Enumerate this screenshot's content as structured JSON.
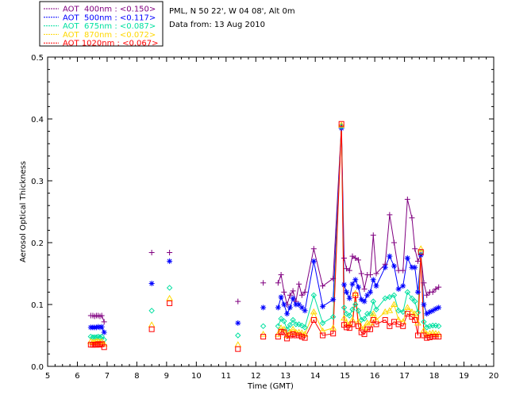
{
  "chart_data": {
    "type": "line",
    "site_info": [
      "PML, N 50 22', W 04 08', Alt 0m",
      "Data from: 13 Aug 2010"
    ],
    "xlabel": "Time (GMT)",
    "ylabel": "Aerosol Optical Thickness",
    "xlim": [
      5,
      20
    ],
    "ylim": [
      0,
      0.5
    ],
    "x_ticks": [
      5,
      6,
      7,
      8,
      9,
      10,
      11,
      12,
      13,
      14,
      15,
      16,
      17,
      18,
      19,
      20
    ],
    "x_tick_labels": [
      "5",
      "6",
      "7",
      "8",
      "9",
      "10",
      "11",
      "12",
      "13",
      "14",
      "15",
      "16",
      "17",
      "18",
      "19",
      "20"
    ],
    "y_ticks": [
      0.0,
      0.1,
      0.2,
      0.3,
      0.4,
      0.5
    ],
    "y_tick_labels": [
      "0.0",
      "0.1",
      "0.2",
      "0.3",
      "0.4",
      "0.5"
    ],
    "grid": false,
    "legend_position": "top-left",
    "x": [
      6.45,
      6.52,
      6.58,
      6.64,
      6.7,
      6.76,
      6.82,
      6.9,
      8.5,
      9.1,
      11.4,
      12.25,
      12.75,
      12.85,
      12.95,
      13.05,
      13.15,
      13.25,
      13.35,
      13.45,
      13.55,
      13.65,
      13.95,
      14.25,
      14.6,
      14.88,
      14.97,
      15.05,
      15.15,
      15.25,
      15.35,
      15.45,
      15.55,
      15.65,
      15.75,
      15.85,
      15.95,
      16.05,
      16.35,
      16.5,
      16.65,
      16.8,
      16.95,
      17.1,
      17.25,
      17.35,
      17.45,
      17.55,
      17.65,
      17.75,
      17.85,
      17.95,
      18.05,
      18.15
    ],
    "series": [
      {
        "name": "AOT  400nm : <0.150>",
        "color": "#800080",
        "marker": "plus",
        "values": [
          0.082,
          0.082,
          0.081,
          0.082,
          0.082,
          0.081,
          0.082,
          0.072,
          0.184,
          0.184,
          0.105,
          0.135,
          0.135,
          0.148,
          0.12,
          0.1,
          0.115,
          0.122,
          0.105,
          0.133,
          0.115,
          0.12,
          0.19,
          0.13,
          0.142,
          0.39,
          0.175,
          0.158,
          0.155,
          0.178,
          0.175,
          0.172,
          0.15,
          0.125,
          0.148,
          0.148,
          0.212,
          0.15,
          0.165,
          0.245,
          0.2,
          0.155,
          0.155,
          0.27,
          0.24,
          0.19,
          0.17,
          0.18,
          0.135,
          0.115,
          0.12,
          0.12,
          0.125,
          0.128
        ]
      },
      {
        "name": "AOT  500nm : <0.117>",
        "color": "#0000ff",
        "marker": "star",
        "values": [
          0.063,
          0.063,
          0.063,
          0.063,
          0.064,
          0.063,
          0.064,
          0.055,
          0.134,
          0.17,
          0.07,
          0.095,
          0.095,
          0.112,
          0.1,
          0.085,
          0.095,
          0.11,
          0.1,
          0.1,
          0.095,
          0.09,
          0.17,
          0.097,
          0.108,
          0.385,
          0.132,
          0.12,
          0.11,
          0.133,
          0.14,
          0.128,
          0.108,
          0.105,
          0.115,
          0.12,
          0.14,
          0.13,
          0.16,
          0.178,
          0.162,
          0.125,
          0.13,
          0.175,
          0.16,
          0.16,
          0.12,
          0.18,
          0.1,
          0.085,
          0.088,
          0.09,
          0.093,
          0.095
        ]
      },
      {
        "name": "AOT  675nm : <0.087>",
        "color": "#00e0a0",
        "marker": "diamond",
        "values": [
          0.048,
          0.047,
          0.047,
          0.047,
          0.048,
          0.047,
          0.048,
          0.043,
          0.09,
          0.127,
          0.05,
          0.065,
          0.065,
          0.077,
          0.073,
          0.06,
          0.067,
          0.075,
          0.068,
          0.068,
          0.066,
          0.063,
          0.115,
          0.07,
          0.08,
          0.388,
          0.095,
          0.085,
          0.082,
          0.092,
          0.1,
          0.09,
          0.075,
          0.077,
          0.085,
          0.085,
          0.105,
          0.092,
          0.11,
          0.112,
          0.115,
          0.09,
          0.088,
          0.12,
          0.11,
          0.105,
          0.087,
          0.185,
          0.072,
          0.063,
          0.065,
          0.066,
          0.066,
          0.065
        ]
      },
      {
        "name": "AOT  870nm : <0.072>",
        "color": "#ffd700",
        "marker": "triangle",
        "values": [
          0.04,
          0.039,
          0.039,
          0.04,
          0.04,
          0.039,
          0.04,
          0.036,
          0.067,
          0.11,
          0.035,
          0.052,
          0.052,
          0.062,
          0.06,
          0.05,
          0.055,
          0.06,
          0.055,
          0.055,
          0.054,
          0.052,
          0.088,
          0.057,
          0.062,
          0.39,
          0.078,
          0.07,
          0.068,
          0.075,
          0.118,
          0.072,
          0.062,
          0.062,
          0.07,
          0.07,
          0.085,
          0.075,
          0.088,
          0.09,
          0.1,
          0.075,
          0.072,
          0.095,
          0.088,
          0.085,
          0.07,
          0.19,
          0.058,
          0.052,
          0.053,
          0.054,
          0.053,
          0.052
        ]
      },
      {
        "name": "AOT 1020nm : <0.067>",
        "color": "#ff0000",
        "marker": "square",
        "values": [
          0.035,
          0.035,
          0.035,
          0.035,
          0.036,
          0.035,
          0.036,
          0.031,
          0.06,
          0.102,
          0.028,
          0.048,
          0.048,
          0.056,
          0.055,
          0.045,
          0.05,
          0.052,
          0.05,
          0.05,
          0.048,
          0.046,
          0.075,
          0.05,
          0.053,
          0.392,
          0.067,
          0.063,
          0.062,
          0.068,
          0.115,
          0.065,
          0.055,
          0.052,
          0.06,
          0.06,
          0.075,
          0.068,
          0.075,
          0.065,
          0.072,
          0.068,
          0.065,
          0.085,
          0.08,
          0.075,
          0.05,
          0.185,
          0.05,
          0.046,
          0.047,
          0.048,
          0.048,
          0.048
        ]
      }
    ]
  }
}
